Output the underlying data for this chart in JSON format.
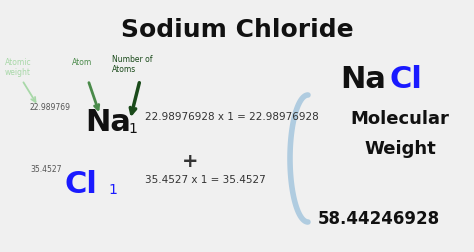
{
  "title": "Sodium Chloride",
  "title_fontsize": 18,
  "title_color": "#111111",
  "background_color": "#f0f0f0",
  "nacl_label_na_color": "#111111",
  "nacl_label_cl_color": "#1a1aff",
  "na_atomic_weight": "22.989769",
  "na_atom": "Na",
  "na_subscript": "1",
  "na_equation": "22.98976928 x 1 = 22.98976928",
  "cl_atomic_weight": "35.4527",
  "cl_atom": "Cl",
  "cl_subscript": "1",
  "cl_equation": "35.4527 x 1 = 35.4527",
  "plus_sign": "+",
  "mol_weight_label1": "Molecular",
  "mol_weight_label2": "Weight",
  "mol_weight_value": "58.44246928",
  "mol_weight_color": "#111111",
  "arrow_label_atomic": "Atomic\nweight",
  "arrow_label_atom": "Atom",
  "arrow_label_number": "Number of\nAtoms",
  "arrow_light_green": "#a8d8a8",
  "arrow_medium_green": "#4a8a4a",
  "arrow_dark_green": "#1a4a1a",
  "small_label_color": "#555555",
  "small_label_fontsize": 5.5,
  "na_fontsize": 22,
  "cl_fontsize": 22,
  "subscript_fontsize": 10,
  "equation_fontsize": 7.5,
  "mol_weight_fontsize": 13,
  "mol_value_fontsize": 12,
  "nacl_label_fontsize": 22,
  "arrow_label_fontsize": 5.5,
  "bracket_color": "#b0cce0",
  "bracket_lw": 4.0
}
